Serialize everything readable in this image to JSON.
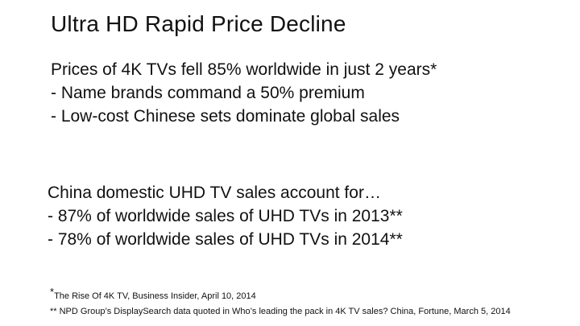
{
  "slide": {
    "title": "Ultra HD Rapid Price Decline",
    "block1": {
      "lines": [
        "Prices of 4K TVs fell 85% worldwide in just 2 years*",
        "- Name brands command a 50% premium",
        "- Low-cost Chinese sets dominate global sales"
      ]
    },
    "block2": {
      "lines": [
        "China domestic UHD TV sales account for…",
        "- 87% of worldwide sales of UHD TVs in 2013**",
        "- 78% of worldwide sales of UHD TVs in 2014**"
      ]
    },
    "footnotes": {
      "note1_marker": "*",
      "note1_text": "The Rise Of 4K TV, Business Insider, April 10, 2014",
      "note2_text": "** NPD Group’s DisplaySearch data quoted in Who’s leading the pack in 4K TV sales? China, Fortune, March 5, 2014"
    }
  }
}
